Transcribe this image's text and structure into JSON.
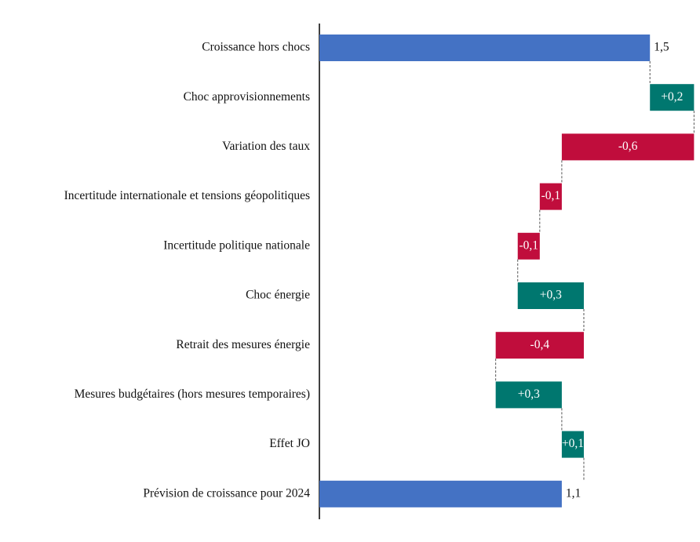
{
  "chart_data": {
    "type": "waterfall",
    "categories": [
      "Croissance hors chocs",
      "Choc approvisionnements",
      "Variation des taux",
      "Incertitude internationale et tensions géopolitiques",
      "Incertitude politique nationale",
      "Choc énergie",
      "Retrait des mesures énergie",
      "Mesures budgétaires (hors mesures temporaires)",
      "Effet JO",
      "Prévision de croissance pour 2024"
    ],
    "values": [
      1.5,
      0.2,
      -0.6,
      -0.1,
      -0.1,
      0.3,
      -0.4,
      0.3,
      0.1,
      1.1
    ],
    "value_labels": [
      "1,5",
      "+0,2",
      "-0,6",
      "-0,1",
      "-0,1",
      "+0,3",
      "-0,4",
      "+0,3",
      "+0,1",
      "1,1"
    ],
    "measure": [
      "absolute",
      "relative",
      "relative",
      "relative",
      "relative",
      "relative",
      "relative",
      "relative",
      "relative",
      "absolute"
    ],
    "colors": {
      "absolute": "#4472c4",
      "increase": "#00776f",
      "decrease": "#c00d3c"
    },
    "xlim": [
      0,
      1.72
    ]
  }
}
